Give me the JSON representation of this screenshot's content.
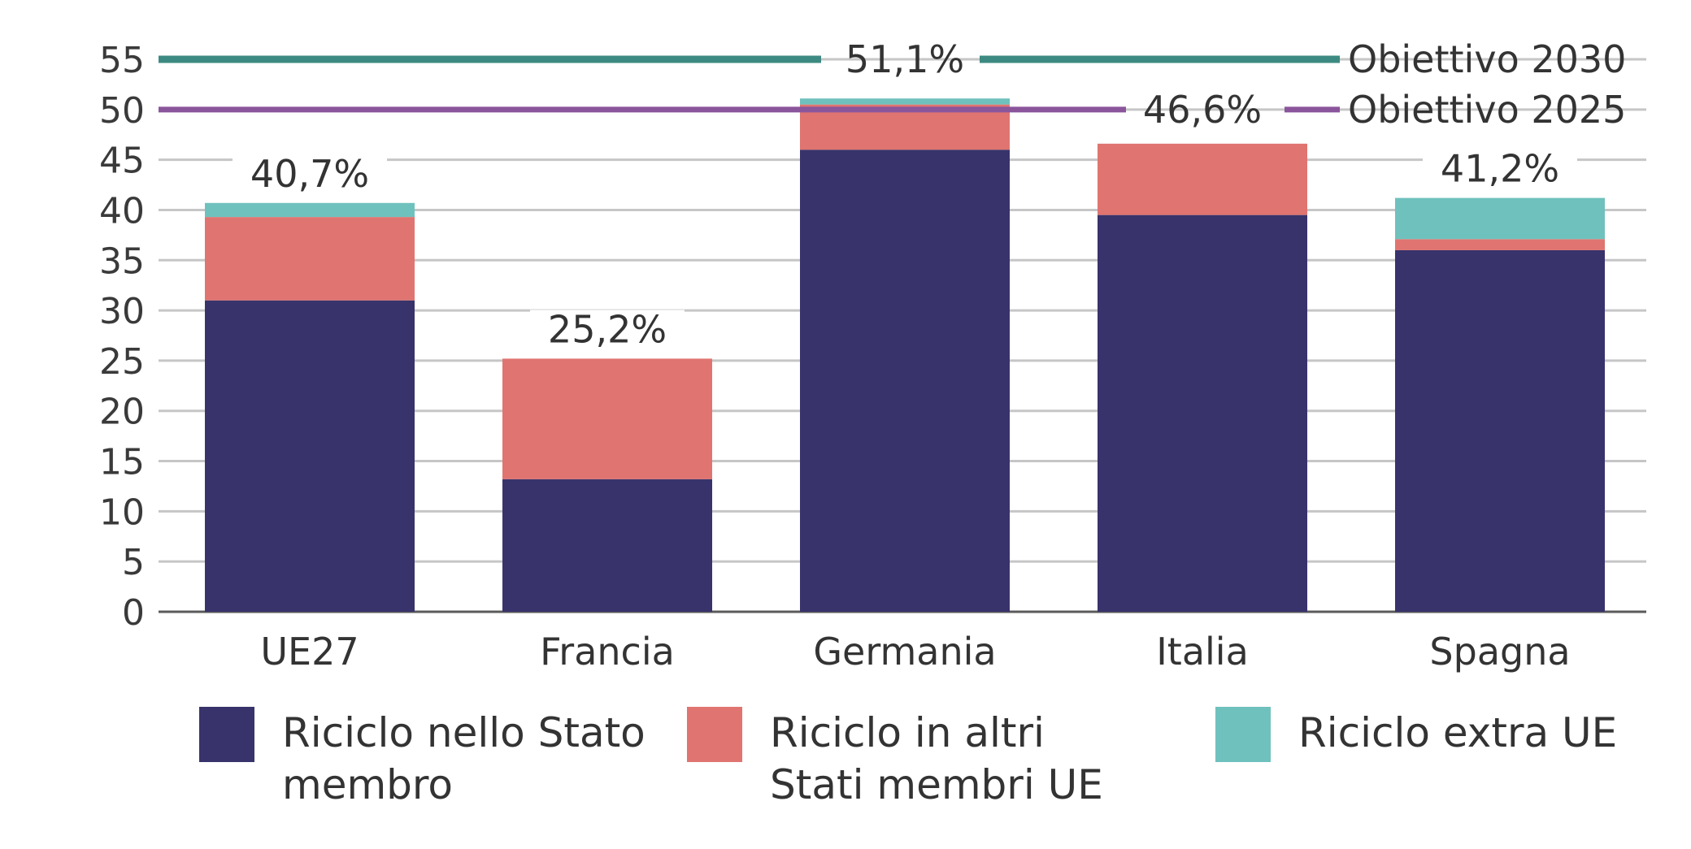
{
  "chart_data": {
    "type": "bar",
    "stacked": true,
    "categories": [
      "UE27",
      "Francia",
      "Germania",
      "Italia",
      "Spagna"
    ],
    "series": [
      {
        "name": "Riciclo nello Stato membro",
        "color": "#38336b",
        "values": [
          31.0,
          13.2,
          46.0,
          39.5,
          36.0
        ]
      },
      {
        "name": "Riciclo in altri Stati membri UE",
        "color": "#e07470",
        "values": [
          8.3,
          12.0,
          4.5,
          7.1,
          1.1
        ]
      },
      {
        "name": "Riciclo extra UE",
        "color": "#6fc1bd",
        "values": [
          1.4,
          0.0,
          0.6,
          0.0,
          4.1
        ]
      }
    ],
    "totals_labels": [
      "40,7%",
      "25,2%",
      "51,1%",
      "46,6%",
      "41,2%"
    ],
    "totals": [
      40.7,
      25.2,
      51.1,
      46.6,
      41.2
    ],
    "y_ticks": [
      "0",
      "5",
      "10",
      "15",
      "20",
      "25",
      "30",
      "35",
      "40",
      "45",
      "50",
      "55"
    ],
    "ylim": [
      0,
      55
    ],
    "grid": true,
    "targets": [
      {
        "label": "Obiettivo 2030",
        "value": 55,
        "color": "#3d8a82"
      },
      {
        "label": "Obiettivo 2025",
        "value": 50,
        "color": "#8a559b"
      }
    ],
    "legend_placement": "bottom"
  }
}
